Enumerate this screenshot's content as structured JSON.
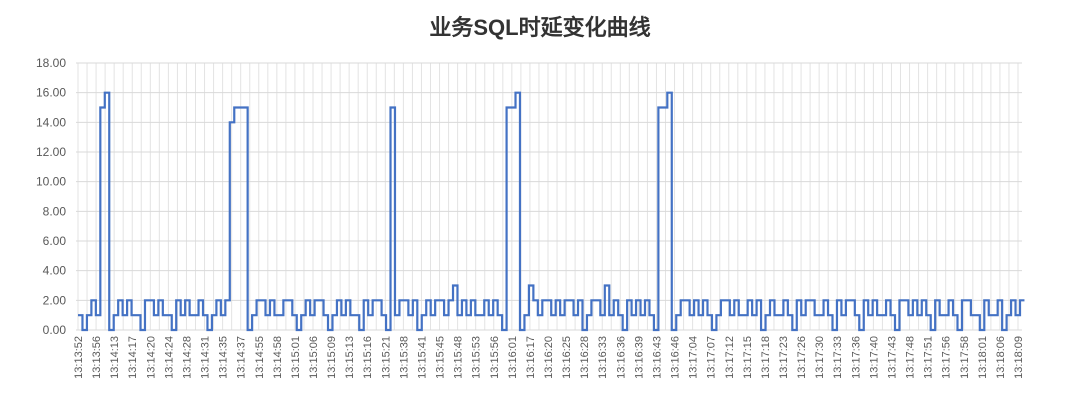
{
  "chart_data": {
    "type": "line",
    "title": "业务SQL时延变化曲线",
    "xlabel": "",
    "ylabel": "",
    "ylim": [
      0,
      18
    ],
    "yticks": [
      "0.00",
      "2.00",
      "4.00",
      "6.00",
      "8.00",
      "10.00",
      "12.00",
      "14.00",
      "16.00",
      "18.00"
    ],
    "grid": true,
    "legend": "none",
    "line_style": "step",
    "series_color": "#4472C4",
    "x_tick_labels": [
      "13:13:52",
      "13:13:56",
      "13:14:13",
      "13:14:17",
      "13:14:20",
      "13:14:24",
      "13:14:28",
      "13:14:31",
      "13:14:35",
      "13:14:37",
      "13:14:55",
      "13:14:58",
      "13:15:01",
      "13:15:06",
      "13:15:09",
      "13:15:13",
      "13:15:16",
      "13:15:21",
      "13:15:38",
      "13:15:41",
      "13:15:45",
      "13:15:48",
      "13:15:53",
      "13:15:56",
      "13:16:01",
      "13:16:17",
      "13:16:20",
      "13:16:25",
      "13:16:28",
      "13:16:33",
      "13:16:36",
      "13:16:39",
      "13:16:43",
      "13:16:46",
      "13:17:04",
      "13:17:07",
      "13:17:12",
      "13:17:15",
      "13:17:18",
      "13:17:23",
      "13:17:26",
      "13:17:30",
      "13:17:33",
      "13:17:36",
      "13:17:40",
      "13:17:43",
      "13:17:48",
      "13:17:51",
      "13:17:56",
      "13:17:58",
      "13:18:01",
      "13:18:06",
      "13:18:09"
    ],
    "values": [
      1,
      0,
      1,
      2,
      1,
      15,
      16,
      0,
      1,
      2,
      1,
      2,
      1,
      1,
      0,
      2,
      2,
      1,
      2,
      1,
      1,
      0,
      2,
      1,
      2,
      1,
      1,
      2,
      1,
      0,
      1,
      2,
      1,
      2,
      14,
      15,
      15,
      15,
      0,
      1,
      2,
      2,
      1,
      2,
      1,
      1,
      2,
      2,
      1,
      0,
      1,
      2,
      1,
      2,
      2,
      1,
      0,
      1,
      2,
      1,
      2,
      1,
      1,
      0,
      2,
      1,
      2,
      2,
      1,
      0,
      15,
      1,
      2,
      2,
      1,
      2,
      0,
      1,
      2,
      1,
      2,
      2,
      1,
      2,
      3,
      1,
      2,
      1,
      2,
      1,
      1,
      2,
      1,
      2,
      1,
      0,
      15,
      15,
      16,
      0,
      1,
      3,
      2,
      1,
      2,
      2,
      1,
      2,
      1,
      2,
      2,
      1,
      2,
      0,
      1,
      2,
      2,
      1,
      3,
      1,
      2,
      1,
      0,
      2,
      1,
      2,
      1,
      2,
      1,
      0,
      15,
      15,
      16,
      0,
      1,
      2,
      2,
      1,
      2,
      1,
      2,
      1,
      0,
      1,
      2,
      2,
      1,
      2,
      1,
      1,
      2,
      1,
      2,
      0,
      1,
      2,
      1,
      1,
      2,
      1,
      0,
      2,
      1,
      2,
      2,
      1,
      1,
      2,
      1,
      0,
      2,
      1,
      2,
      2,
      1,
      0,
      2,
      1,
      2,
      1,
      1,
      2,
      1,
      0,
      2,
      2,
      1,
      2,
      1,
      2,
      1,
      0,
      2,
      1,
      1,
      2,
      1,
      0,
      2,
      2,
      1,
      1,
      0,
      2,
      1,
      1,
      2,
      0,
      1,
      2,
      1,
      2
    ]
  }
}
